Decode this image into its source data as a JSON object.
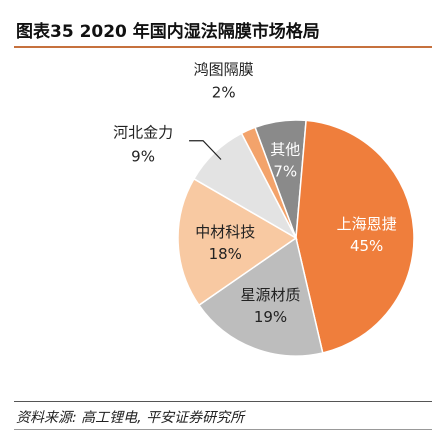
{
  "figure": {
    "title": "图表35   2020 年国内湿法隔膜市场格局",
    "source": "资料来源: 高工锂电, 平安证券研究所"
  },
  "colors": {
    "header_rule": "#c6713e",
    "label_dark": "#222222",
    "label_light": "#ffffff"
  },
  "chart_data": {
    "type": "pie",
    "title": "2020 年国内湿法隔膜市场格局",
    "unit": "%",
    "start_slice": "其他",
    "slices": [
      {
        "name": "其他",
        "value": 7,
        "value_label": "7%",
        "color": "#8a8a8a",
        "label_color": "#ffffff",
        "label_position": "inside"
      },
      {
        "name": "上海恩捷",
        "value": 45,
        "value_label": "45%",
        "color": "#ef7e3c",
        "label_color": "#ffffff",
        "label_position": "inside"
      },
      {
        "name": "星源材质",
        "value": 19,
        "value_label": "19%",
        "color": "#bdbdbd",
        "label_color": "#222222",
        "label_position": "inside"
      },
      {
        "name": "中材科技",
        "value": 18,
        "value_label": "18%",
        "color": "#f8c9a2",
        "label_color": "#222222",
        "label_position": "inside"
      },
      {
        "name": "河北金力",
        "value": 9,
        "value_label": "9%",
        "color": "#e3e3e3",
        "label_color": "#222222",
        "label_position": "outside-leader"
      },
      {
        "name": "鸿图隔膜",
        "value": 2,
        "value_label": "2%",
        "color": "#f3a36b",
        "label_color": "#222222",
        "label_position": "outside-top"
      }
    ]
  }
}
